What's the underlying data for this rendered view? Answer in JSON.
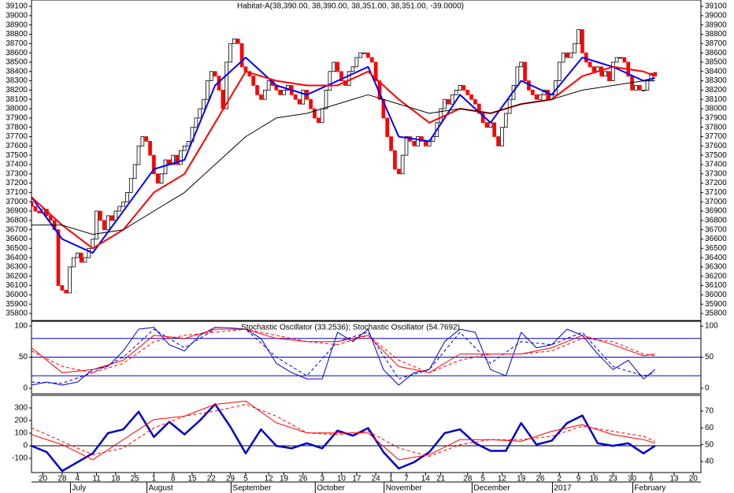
{
  "chart_data": [
    {
      "type": "candlestick",
      "title": "Habitat-A(38,390.00, 38,390.00, 38,351.00, 38,351.00, -39.0000)",
      "up_color": "#ffffff",
      "down_color": "#ff0000",
      "ylim": [
        35724,
        39168
      ],
      "yticks": [
        35800,
        35900,
        36000,
        36100,
        36200,
        36300,
        36400,
        36500,
        36600,
        36700,
        36800,
        36900,
        37000,
        37100,
        37200,
        37300,
        37400,
        37500,
        37600,
        37700,
        37800,
        37900,
        38000,
        38100,
        38200,
        38300,
        38400,
        38500,
        38600,
        38700,
        38800,
        38900,
        39000,
        39100
      ],
      "open": [
        37000,
        36950,
        36900,
        36880,
        36920,
        36850,
        36800,
        36700,
        36100,
        36050,
        36020,
        36300,
        36400,
        36450,
        36350,
        36400,
        36500,
        36600,
        36900,
        36800,
        36700,
        36850,
        36800,
        36900,
        36950,
        37000,
        37100,
        37250,
        37400,
        37600,
        37700,
        37650,
        37500,
        37300,
        37200,
        37300,
        37450,
        37400,
        37500,
        37400,
        37550,
        37600,
        37650,
        37800,
        37900,
        38000,
        38100,
        38300,
        38400,
        38350,
        38200,
        38000,
        38500,
        38700,
        38750,
        38700,
        38450,
        38400,
        38350,
        38250,
        38150,
        38100,
        38200,
        38300,
        38250,
        38200,
        38150,
        38200,
        38250,
        38150,
        38100,
        38050,
        38200,
        38100,
        38000,
        37900,
        37850,
        38000,
        38200,
        38400,
        38500,
        38400,
        38300,
        38250,
        38400,
        38450,
        38550,
        38600,
        38600,
        38550,
        38500,
        38300,
        38100,
        37900,
        37700,
        37550,
        37350,
        37300,
        37500,
        37700,
        37650,
        37600,
        37700,
        37650,
        37600,
        37650,
        37700,
        37850,
        38000,
        38100,
        38050,
        38150,
        38200,
        38250,
        38200,
        38150,
        38100,
        38050,
        37950,
        37850,
        37800,
        37850,
        37700,
        37600,
        37800,
        37950,
        38100,
        38250,
        38450,
        38500,
        38300,
        38200,
        38150,
        38100,
        38150,
        38200,
        38100,
        38150,
        38300,
        38500,
        38600,
        38550,
        38600,
        38700,
        38850,
        38600,
        38500,
        38450,
        38400,
        38450,
        38350,
        38400,
        38300,
        38500,
        38550,
        38550,
        38500,
        38350,
        38200,
        38250,
        38200,
        38200,
        38300,
        38390
      ],
      "close": [
        36950,
        36900,
        36880,
        36920,
        36850,
        36800,
        36700,
        36100,
        36050,
        36020,
        36300,
        36400,
        36450,
        36350,
        36400,
        36500,
        36600,
        36900,
        36800,
        36700,
        36850,
        36800,
        36900,
        36950,
        37000,
        37100,
        37250,
        37400,
        37600,
        37700,
        37650,
        37500,
        37300,
        37200,
        37300,
        37450,
        37400,
        37500,
        37400,
        37550,
        37600,
        37650,
        37800,
        37900,
        38000,
        38100,
        38300,
        38400,
        38350,
        38200,
        38000,
        38500,
        38700,
        38750,
        38700,
        38450,
        38400,
        38350,
        38250,
        38150,
        38100,
        38200,
        38300,
        38250,
        38200,
        38150,
        38200,
        38250,
        38150,
        38100,
        38050,
        38200,
        38100,
        38000,
        37900,
        37850,
        38000,
        38200,
        38400,
        38500,
        38400,
        38300,
        38250,
        38400,
        38450,
        38550,
        38600,
        38600,
        38550,
        38500,
        38300,
        38100,
        37900,
        37700,
        37550,
        37350,
        37300,
        37500,
        37700,
        37650,
        37600,
        37700,
        37650,
        37600,
        37650,
        37700,
        37850,
        38000,
        38100,
        38050,
        38150,
        38200,
        38250,
        38200,
        38150,
        38100,
        38050,
        37950,
        37850,
        37800,
        37850,
        37700,
        37600,
        37800,
        37950,
        38100,
        38250,
        38450,
        38500,
        38300,
        38200,
        38150,
        38100,
        38150,
        38200,
        38100,
        38150,
        38300,
        38500,
        38600,
        38550,
        38600,
        38700,
        38850,
        38600,
        38500,
        38450,
        38400,
        38450,
        38350,
        38400,
        38300,
        38500,
        38550,
        38550,
        38500,
        38350,
        38200,
        38250,
        38200,
        38200,
        38300,
        38380,
        38351
      ],
      "series": [
        {
          "color": "#0000ff",
          "width": 2,
          "x": [
            0,
            8,
            16,
            24,
            32,
            40,
            48,
            56,
            64,
            72,
            80,
            88,
            96,
            104,
            112,
            120,
            128,
            136,
            144,
            152,
            160,
            163
          ],
          "values": [
            37050,
            36600,
            36450,
            36900,
            37350,
            37450,
            38250,
            38550,
            38250,
            38150,
            38300,
            38450,
            37700,
            37650,
            38150,
            37850,
            38300,
            38150,
            38550,
            38450,
            38300,
            38330
          ]
        },
        {
          "color": "#ff0000",
          "width": 2,
          "x": [
            0,
            8,
            16,
            24,
            32,
            40,
            48,
            56,
            64,
            72,
            80,
            88,
            96,
            104,
            112,
            120,
            128,
            136,
            144,
            152,
            160,
            163
          ],
          "values": [
            37050,
            36750,
            36500,
            36700,
            37100,
            37300,
            37850,
            38400,
            38300,
            38250,
            38250,
            38400,
            38100,
            37850,
            38000,
            37950,
            38050,
            38100,
            38350,
            38450,
            38400,
            38350
          ]
        },
        {
          "color": "#000000",
          "width": 1,
          "x": [
            0,
            8,
            16,
            24,
            32,
            40,
            48,
            56,
            64,
            72,
            80,
            88,
            96,
            104,
            112,
            120,
            128,
            136,
            144,
            152,
            160,
            163
          ],
          "values": [
            36750,
            36750,
            36650,
            36700,
            36900,
            37100,
            37400,
            37700,
            37900,
            37950,
            38050,
            38150,
            38050,
            37950,
            38000,
            37950,
            38050,
            38100,
            38200,
            38250,
            38300,
            38300
          ]
        }
      ]
    },
    {
      "type": "line",
      "title": "Stochastic Oscillator (33.2536); Stochastic Oscillator (54.7692)",
      "ylim": [
        -8.9,
        107.6
      ],
      "yticks": [
        0,
        50,
        100
      ],
      "levels": [
        20,
        50,
        80
      ],
      "level_color": "#0000cc",
      "series": [
        {
          "color": "#0000cc",
          "width": 1,
          "dash": false,
          "x": [
            0,
            4,
            8,
            12,
            16,
            20,
            24,
            28,
            32,
            36,
            40,
            44,
            48,
            52,
            56,
            60,
            64,
            68,
            72,
            76,
            80,
            84,
            88,
            92,
            96,
            100,
            104,
            108,
            112,
            116,
            120,
            124,
            128,
            132,
            136,
            140,
            144,
            148,
            152,
            156,
            160,
            163
          ],
          "values": [
            5,
            10,
            5,
            10,
            30,
            35,
            60,
            95,
            98,
            70,
            60,
            85,
            98,
            97,
            95,
            80,
            40,
            25,
            15,
            15,
            90,
            75,
            95,
            30,
            5,
            25,
            30,
            75,
            95,
            90,
            30,
            20,
            90,
            65,
            70,
            95,
            85,
            55,
            30,
            45,
            15,
            30
          ]
        },
        {
          "color": "#0000cc",
          "width": 1,
          "dash": true,
          "x": [
            0,
            8,
            16,
            24,
            32,
            40,
            48,
            56,
            64,
            72,
            80,
            88,
            96,
            104,
            112,
            120,
            128,
            136,
            144,
            152,
            160,
            163
          ],
          "values": [
            10,
            8,
            25,
            50,
            95,
            65,
            95,
            95,
            50,
            20,
            75,
            90,
            15,
            30,
            90,
            40,
            75,
            70,
            90,
            35,
            20,
            25
          ]
        },
        {
          "color": "#ff0000",
          "width": 1,
          "dash": false,
          "x": [
            0,
            8,
            16,
            24,
            32,
            40,
            48,
            56,
            64,
            72,
            80,
            88,
            96,
            104,
            112,
            120,
            128,
            136,
            144,
            152,
            160,
            163
          ],
          "values": [
            65,
            25,
            30,
            45,
            85,
            80,
            95,
            95,
            80,
            75,
            75,
            85,
            35,
            25,
            55,
            55,
            55,
            65,
            85,
            70,
            52,
            55
          ]
        },
        {
          "color": "#ff0000",
          "width": 1,
          "dash": true,
          "x": [
            0,
            8,
            16,
            24,
            32,
            40,
            48,
            56,
            64,
            72,
            80,
            88,
            96,
            104,
            112,
            120,
            128,
            136,
            144,
            152,
            160,
            163
          ],
          "values": [
            60,
            35,
            25,
            40,
            75,
            85,
            90,
            95,
            85,
            75,
            70,
            85,
            45,
            25,
            45,
            55,
            55,
            60,
            80,
            75,
            55,
            52
          ]
        }
      ]
    },
    {
      "type": "line",
      "ylim": [
        -212,
        400
      ],
      "yticks": [
        -100,
        0,
        100,
        200,
        300
      ],
      "y2lim": [
        33.4,
        79.4
      ],
      "y2ticks": [
        40,
        50,
        60,
        70
      ],
      "hlines": [
        0
      ],
      "xlim": [
        0,
        175
      ],
      "xticks": [
        {
          "value": 3,
          "label": "20"
        },
        {
          "value": 8,
          "label": "28"
        },
        {
          "value": 12,
          "label": "4"
        },
        {
          "value": 17,
          "label": "11"
        },
        {
          "value": 22,
          "label": "18"
        },
        {
          "value": 27,
          "label": "25"
        },
        {
          "value": 32,
          "label": "1"
        },
        {
          "value": 37,
          "label": "8"
        },
        {
          "value": 42,
          "label": "15"
        },
        {
          "value": 47,
          "label": "22"
        },
        {
          "value": 52,
          "label": "29"
        },
        {
          "value": 56,
          "label": "5"
        },
        {
          "value": 62,
          "label": "12"
        },
        {
          "value": 66,
          "label": "19"
        },
        {
          "value": 71,
          "label": "26"
        },
        {
          "value": 76,
          "label": "3"
        },
        {
          "value": 81,
          "label": "10"
        },
        {
          "value": 85,
          "label": "17"
        },
        {
          "value": 90,
          "label": "24"
        },
        {
          "value": 94,
          "label": "1"
        },
        {
          "value": 98,
          "label": "7"
        },
        {
          "value": 103,
          "label": "14"
        },
        {
          "value": 107,
          "label": "21"
        },
        {
          "value": 114,
          "label": "28"
        },
        {
          "value": 118,
          "label": "5"
        },
        {
          "value": 123,
          "label": "12"
        },
        {
          "value": 128,
          "label": "19"
        },
        {
          "value": 133,
          "label": "26"
        },
        {
          "value": 138,
          "label": "2"
        },
        {
          "value": 143,
          "label": "9"
        },
        {
          "value": 147,
          "label": "16"
        },
        {
          "value": 152,
          "label": "23"
        },
        {
          "value": 157,
          "label": "30"
        },
        {
          "value": 162,
          "label": "6"
        },
        {
          "value": 168,
          "label": "13"
        },
        {
          "value": 173,
          "label": "20"
        }
      ],
      "month_ticks": [
        {
          "value": 11,
          "label": "July"
        },
        {
          "value": 31,
          "label": "August"
        },
        {
          "value": 53,
          "label": "September"
        },
        {
          "value": 75,
          "label": "October"
        },
        {
          "value": 93,
          "label": "November"
        },
        {
          "value": 116,
          "label": "December"
        },
        {
          "value": 137,
          "label": "2017"
        },
        {
          "value": 158,
          "label": "February"
        }
      ],
      "series": [
        {
          "color": "#0000cc",
          "width": 2.5,
          "dash": false,
          "x": [
            0,
            4,
            8,
            12,
            16,
            20,
            24,
            28,
            32,
            36,
            40,
            44,
            48,
            52,
            56,
            60,
            64,
            68,
            72,
            76,
            80,
            84,
            88,
            92,
            96,
            100,
            104,
            108,
            112,
            116,
            120,
            124,
            128,
            132,
            136,
            140,
            144,
            148,
            152,
            156,
            160,
            163
          ],
          "values": [
            0,
            -50,
            -200,
            -130,
            -60,
            100,
            130,
            270,
            70,
            190,
            90,
            200,
            330,
            150,
            -60,
            130,
            0,
            -20,
            20,
            -20,
            120,
            80,
            140,
            -50,
            -180,
            -130,
            -50,
            100,
            130,
            20,
            -40,
            -40,
            180,
            10,
            40,
            180,
            240,
            20,
            0,
            20,
            -60,
            0
          ]
        },
        {
          "color": "#ff0000",
          "width": 1,
          "dash": false,
          "axis": "y2",
          "x": [
            0,
            8,
            16,
            24,
            32,
            40,
            48,
            56,
            64,
            72,
            80,
            88,
            96,
            104,
            112,
            120,
            128,
            136,
            144,
            152,
            160,
            163
          ],
          "values": [
            56,
            50,
            41,
            53,
            65,
            67,
            74,
            76,
            63,
            57,
            57,
            57,
            41,
            44,
            53,
            53,
            52,
            58,
            62,
            56,
            53,
            51
          ]
        },
        {
          "color": "#ff0000",
          "width": 1,
          "dash": true,
          "axis": "y2",
          "x": [
            0,
            8,
            16,
            24,
            32,
            40,
            48,
            56,
            64,
            72,
            80,
            88,
            96,
            104,
            112,
            120,
            128,
            136,
            144,
            152,
            160,
            163
          ],
          "values": [
            60,
            52,
            44,
            48,
            60,
            67,
            70,
            74,
            67,
            57,
            56,
            58,
            48,
            43,
            50,
            53,
            53,
            55,
            61,
            58,
            55,
            52
          ]
        }
      ]
    }
  ]
}
